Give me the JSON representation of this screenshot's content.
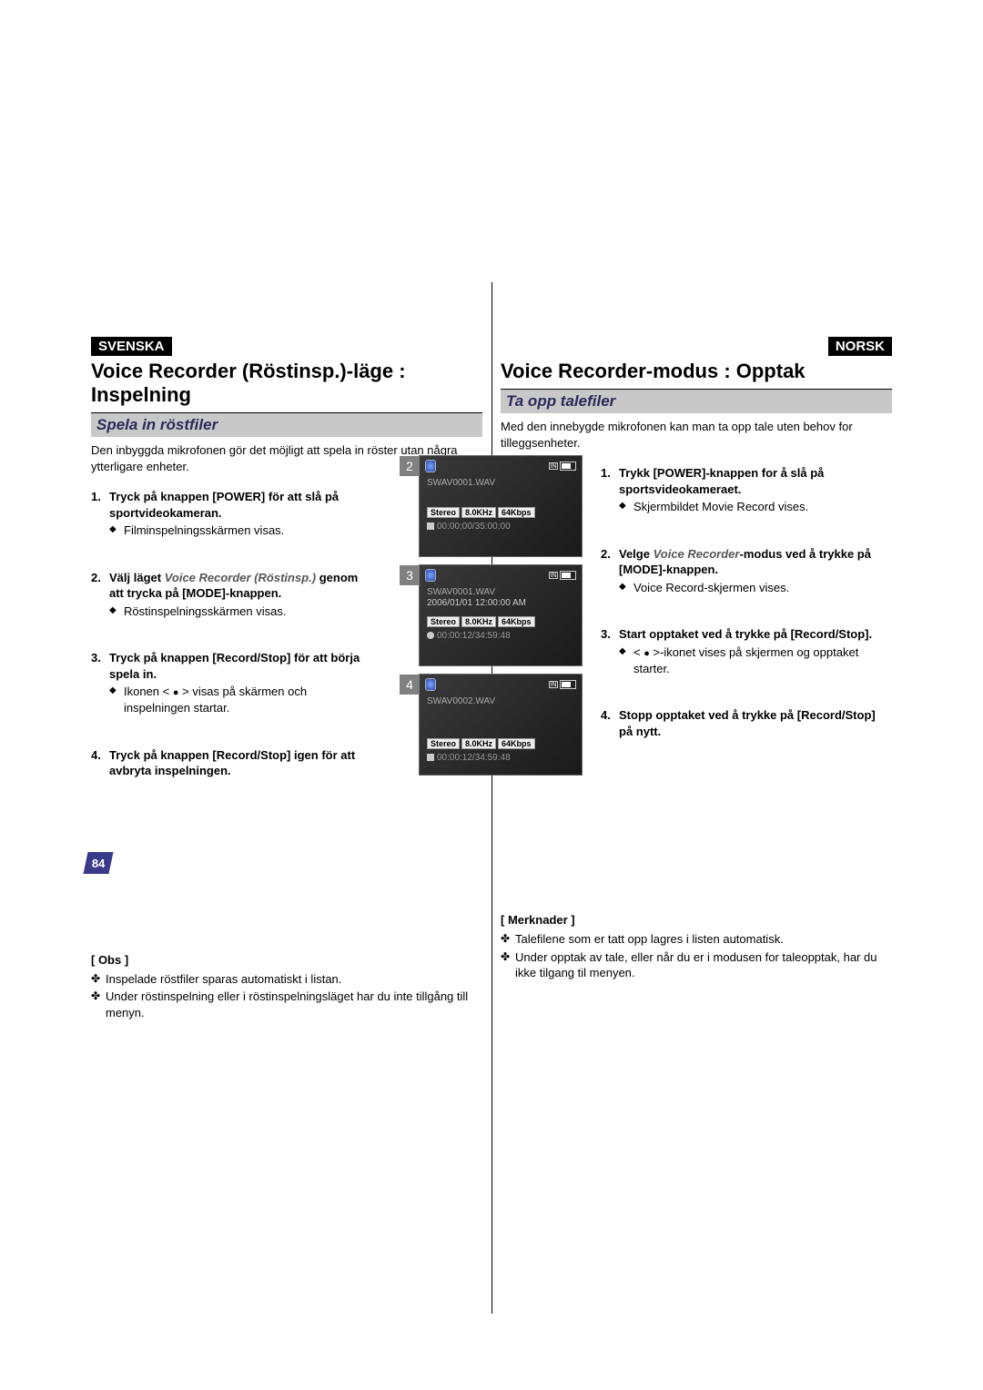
{
  "page_number": "84",
  "left": {
    "lang": "SVENSKA",
    "title": "Voice Recorder (Röstinsp.)-läge : Inspelning",
    "subtitle": "Spela in röstfiler",
    "intro": "Den inbyggda mikrofonen gör det möjligt att spela in röster utan några ytterligare enheter.",
    "steps": [
      {
        "num": "1.",
        "head": "Tryck på knappen [POWER] för att slå på sportvideokameran.",
        "sub": "Filminspelningsskärmen visas."
      },
      {
        "num": "2.",
        "head_pre": "Välj läget ",
        "head_em": "Voice Recorder (Röstinsp.)",
        "head_post": " genom att trycka på [MODE]-knappen.",
        "sub": "Röstinspelningsskärmen visas."
      },
      {
        "num": "3.",
        "head": "Tryck på knappen [Record/Stop] för att börja spela in.",
        "sub_pre": "Ikonen < ",
        "sub_post": " > visas på skärmen och inspelningen startar."
      },
      {
        "num": "4.",
        "head": "Tryck på knappen [Record/Stop] igen för att avbryta inspelningen."
      }
    ],
    "notes_title": "[ Obs ]",
    "notes": [
      "Inspelade röstfiler sparas automatiskt i listan.",
      "Under röstinspelning eller i röstinspelningsläget har du inte tillgång till menyn."
    ]
  },
  "right": {
    "lang": "NORSK",
    "title": "Voice Recorder-modus : Opptak",
    "subtitle": "Ta opp talefiler",
    "intro": "Med den innebygde mikrofonen kan man ta opp tale uten behov for tilleggsenheter.",
    "steps": [
      {
        "num": "1.",
        "head": "Trykk [POWER]-knappen for å slå på sportsvideokameraet.",
        "sub": "Skjermbildet Movie Record vises."
      },
      {
        "num": "2.",
        "head_pre": "Velge ",
        "head_em": "Voice Recorder",
        "head_post": "-modus ved å trykke på [MODE]-knappen.",
        "sub": "Voice Record-skjermen vises."
      },
      {
        "num": "3.",
        "head": "Start opptaket ved å trykke på [Record/Stop].",
        "sub_pre": "< ",
        "sub_post": " >-ikonet vises på skjermen og opptaket starter."
      },
      {
        "num": "4.",
        "head": "Stopp opptaket ved å trykke på [Record/Stop] på nytt."
      }
    ],
    "notes_title": "[ Merknader ]",
    "notes": [
      "Talefilene som er tatt opp lagres i listen automatisk.",
      "Under opptak av tale, eller når du er i modusen for taleopptak, har du ikke tilgang til menyen."
    ]
  },
  "screens": {
    "badge_stereo": "Stereo",
    "badge_khz": "8.0KHz",
    "badge_kbps": "64Kbps",
    "storage": "IN",
    "s2": {
      "tag": "2",
      "file": "SWAV0001.WAV",
      "time": "00:00:00/35:00:00"
    },
    "s3": {
      "tag": "3",
      "file": "SWAV0001.WAV",
      "date": "2006/01/01 12:00:00 AM",
      "time": "00:00:12/34:59:48"
    },
    "s4": {
      "tag": "4",
      "file": "SWAV0002.WAV",
      "time": "00:00:12/34:59:48"
    }
  }
}
